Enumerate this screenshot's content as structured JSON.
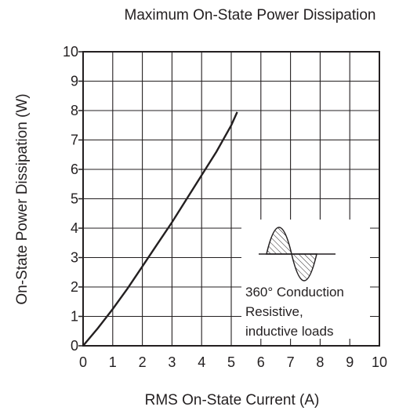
{
  "chart_data": {
    "type": "line",
    "title": "Maximum On-State Power Dissipation",
    "xlabel": "RMS On-State Current  (A)",
    "ylabel": "On-State Power Dissipation  (W)",
    "xlim": [
      0,
      10
    ],
    "ylim": [
      0,
      10
    ],
    "x_ticks": [
      "0",
      "1",
      "2",
      "3",
      "4",
      "5",
      "6",
      "7",
      "8",
      "9",
      "10"
    ],
    "y_ticks": [
      "0",
      "1",
      "2",
      "3",
      "4",
      "5",
      "6",
      "7",
      "8",
      "9",
      "10"
    ],
    "grid": true,
    "series": [
      {
        "x": [
          0,
          0.5,
          1,
          1.5,
          2,
          2.5,
          3,
          3.5,
          4,
          4.5,
          5,
          5.2
        ],
        "y": [
          0,
          0.6,
          1.25,
          1.95,
          2.7,
          3.45,
          4.2,
          5.0,
          5.8,
          6.6,
          7.5,
          7.95
        ]
      }
    ],
    "annotation": {
      "lines": [
        "360° Conduction",
        "Resistive,",
        "inductive loads"
      ]
    }
  },
  "colors": {
    "ink": "#231f20",
    "background": "#ffffff"
  }
}
